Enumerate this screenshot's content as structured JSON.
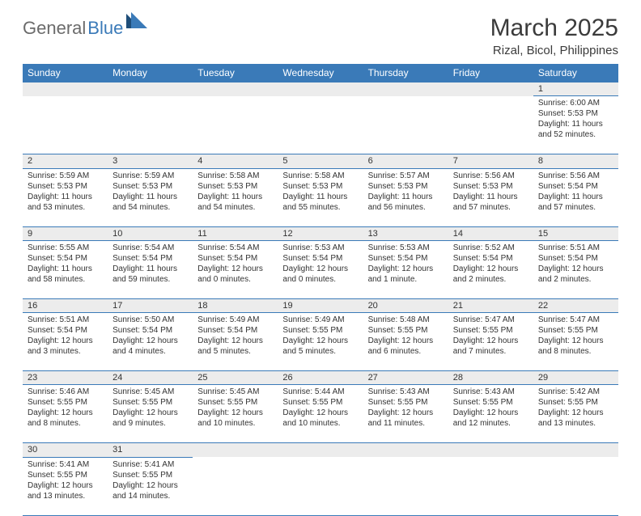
{
  "logo": {
    "text1": "General",
    "text2": "Blue"
  },
  "title": "March 2025",
  "location": "Rizal, Bicol, Philippines",
  "colors": {
    "header_bg": "#3a7ab8",
    "header_text": "#ffffff",
    "daynum_bg": "#ececec",
    "border": "#3a7ab8",
    "body_text": "#333333",
    "logo_gray": "#6b6b6b",
    "logo_blue": "#3a7ab8",
    "page_bg": "#ffffff"
  },
  "typography": {
    "title_fontsize": 30,
    "location_fontsize": 15,
    "header_fontsize": 12,
    "cell_fontsize": 10,
    "daynum_fontsize": 11
  },
  "day_headers": [
    "Sunday",
    "Monday",
    "Tuesday",
    "Wednesday",
    "Thursday",
    "Friday",
    "Saturday"
  ],
  "weeks": [
    [
      null,
      null,
      null,
      null,
      null,
      null,
      {
        "n": "1",
        "sr": "Sunrise: 6:00 AM",
        "ss": "Sunset: 5:53 PM",
        "dl": "Daylight: 11 hours and 52 minutes."
      }
    ],
    [
      {
        "n": "2",
        "sr": "Sunrise: 5:59 AM",
        "ss": "Sunset: 5:53 PM",
        "dl": "Daylight: 11 hours and 53 minutes."
      },
      {
        "n": "3",
        "sr": "Sunrise: 5:59 AM",
        "ss": "Sunset: 5:53 PM",
        "dl": "Daylight: 11 hours and 54 minutes."
      },
      {
        "n": "4",
        "sr": "Sunrise: 5:58 AM",
        "ss": "Sunset: 5:53 PM",
        "dl": "Daylight: 11 hours and 54 minutes."
      },
      {
        "n": "5",
        "sr": "Sunrise: 5:58 AM",
        "ss": "Sunset: 5:53 PM",
        "dl": "Daylight: 11 hours and 55 minutes."
      },
      {
        "n": "6",
        "sr": "Sunrise: 5:57 AM",
        "ss": "Sunset: 5:53 PM",
        "dl": "Daylight: 11 hours and 56 minutes."
      },
      {
        "n": "7",
        "sr": "Sunrise: 5:56 AM",
        "ss": "Sunset: 5:53 PM",
        "dl": "Daylight: 11 hours and 57 minutes."
      },
      {
        "n": "8",
        "sr": "Sunrise: 5:56 AM",
        "ss": "Sunset: 5:54 PM",
        "dl": "Daylight: 11 hours and 57 minutes."
      }
    ],
    [
      {
        "n": "9",
        "sr": "Sunrise: 5:55 AM",
        "ss": "Sunset: 5:54 PM",
        "dl": "Daylight: 11 hours and 58 minutes."
      },
      {
        "n": "10",
        "sr": "Sunrise: 5:54 AM",
        "ss": "Sunset: 5:54 PM",
        "dl": "Daylight: 11 hours and 59 minutes."
      },
      {
        "n": "11",
        "sr": "Sunrise: 5:54 AM",
        "ss": "Sunset: 5:54 PM",
        "dl": "Daylight: 12 hours and 0 minutes."
      },
      {
        "n": "12",
        "sr": "Sunrise: 5:53 AM",
        "ss": "Sunset: 5:54 PM",
        "dl": "Daylight: 12 hours and 0 minutes."
      },
      {
        "n": "13",
        "sr": "Sunrise: 5:53 AM",
        "ss": "Sunset: 5:54 PM",
        "dl": "Daylight: 12 hours and 1 minute."
      },
      {
        "n": "14",
        "sr": "Sunrise: 5:52 AM",
        "ss": "Sunset: 5:54 PM",
        "dl": "Daylight: 12 hours and 2 minutes."
      },
      {
        "n": "15",
        "sr": "Sunrise: 5:51 AM",
        "ss": "Sunset: 5:54 PM",
        "dl": "Daylight: 12 hours and 2 minutes."
      }
    ],
    [
      {
        "n": "16",
        "sr": "Sunrise: 5:51 AM",
        "ss": "Sunset: 5:54 PM",
        "dl": "Daylight: 12 hours and 3 minutes."
      },
      {
        "n": "17",
        "sr": "Sunrise: 5:50 AM",
        "ss": "Sunset: 5:54 PM",
        "dl": "Daylight: 12 hours and 4 minutes."
      },
      {
        "n": "18",
        "sr": "Sunrise: 5:49 AM",
        "ss": "Sunset: 5:54 PM",
        "dl": "Daylight: 12 hours and 5 minutes."
      },
      {
        "n": "19",
        "sr": "Sunrise: 5:49 AM",
        "ss": "Sunset: 5:55 PM",
        "dl": "Daylight: 12 hours and 5 minutes."
      },
      {
        "n": "20",
        "sr": "Sunrise: 5:48 AM",
        "ss": "Sunset: 5:55 PM",
        "dl": "Daylight: 12 hours and 6 minutes."
      },
      {
        "n": "21",
        "sr": "Sunrise: 5:47 AM",
        "ss": "Sunset: 5:55 PM",
        "dl": "Daylight: 12 hours and 7 minutes."
      },
      {
        "n": "22",
        "sr": "Sunrise: 5:47 AM",
        "ss": "Sunset: 5:55 PM",
        "dl": "Daylight: 12 hours and 8 minutes."
      }
    ],
    [
      {
        "n": "23",
        "sr": "Sunrise: 5:46 AM",
        "ss": "Sunset: 5:55 PM",
        "dl": "Daylight: 12 hours and 8 minutes."
      },
      {
        "n": "24",
        "sr": "Sunrise: 5:45 AM",
        "ss": "Sunset: 5:55 PM",
        "dl": "Daylight: 12 hours and 9 minutes."
      },
      {
        "n": "25",
        "sr": "Sunrise: 5:45 AM",
        "ss": "Sunset: 5:55 PM",
        "dl": "Daylight: 12 hours and 10 minutes."
      },
      {
        "n": "26",
        "sr": "Sunrise: 5:44 AM",
        "ss": "Sunset: 5:55 PM",
        "dl": "Daylight: 12 hours and 10 minutes."
      },
      {
        "n": "27",
        "sr": "Sunrise: 5:43 AM",
        "ss": "Sunset: 5:55 PM",
        "dl": "Daylight: 12 hours and 11 minutes."
      },
      {
        "n": "28",
        "sr": "Sunrise: 5:43 AM",
        "ss": "Sunset: 5:55 PM",
        "dl": "Daylight: 12 hours and 12 minutes."
      },
      {
        "n": "29",
        "sr": "Sunrise: 5:42 AM",
        "ss": "Sunset: 5:55 PM",
        "dl": "Daylight: 12 hours and 13 minutes."
      }
    ],
    [
      {
        "n": "30",
        "sr": "Sunrise: 5:41 AM",
        "ss": "Sunset: 5:55 PM",
        "dl": "Daylight: 12 hours and 13 minutes."
      },
      {
        "n": "31",
        "sr": "Sunrise: 5:41 AM",
        "ss": "Sunset: 5:55 PM",
        "dl": "Daylight: 12 hours and 14 minutes."
      },
      null,
      null,
      null,
      null,
      null
    ]
  ]
}
